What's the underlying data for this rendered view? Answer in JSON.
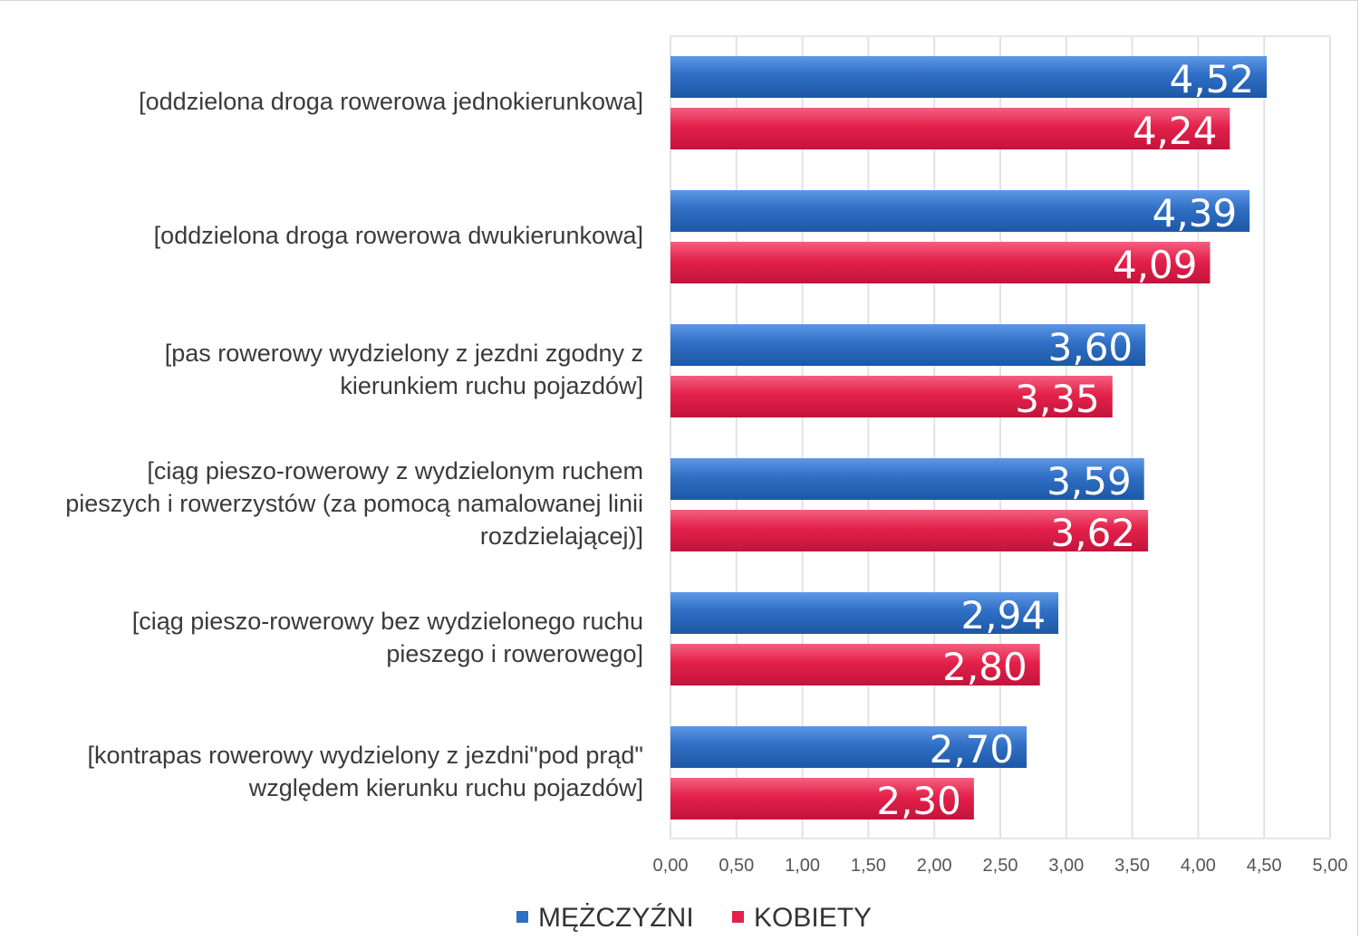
{
  "chart_data": {
    "type": "bar",
    "orientation": "horizontal",
    "categories": [
      [
        "[oddzielona droga rowerowa jednokierunkowa]"
      ],
      [
        "[oddzielona droga rowerowa dwukierunkowa]"
      ],
      [
        "[pas rowerowy wydzielony z jezdni zgodny z",
        "kierunkiem ruchu pojazdów]"
      ],
      [
        "[ciąg pieszo-rowerowy z wydzielonym ruchem",
        "pieszych i rowerzystów (za pomocą namalowanej linii",
        "rozdzielającej)]"
      ],
      [
        "[ciąg pieszo-rowerowy bez wydzielonego ruchu",
        "pieszego i rowerowego]"
      ],
      [
        "[kontrapas rowerowy wydzielony z jezdni\"pod prąd\"",
        "względem kierunku ruchu pojazdów]"
      ]
    ],
    "series": [
      {
        "name": "MĘŻCZYŹNI",
        "color": "#2f6fc4",
        "values": [
          4.52,
          4.39,
          3.6,
          3.59,
          2.94,
          2.7
        ],
        "labels": [
          "4,52",
          "4,39",
          "3,60",
          "3,59",
          "2,94",
          "2,70"
        ]
      },
      {
        "name": "KOBIETY",
        "color": "#e4214a",
        "values": [
          4.24,
          4.09,
          3.35,
          3.62,
          2.8,
          2.3
        ],
        "labels": [
          "4,24",
          "4,09",
          "3,35",
          "3,62",
          "2,80",
          "2,30"
        ]
      }
    ],
    "xlim": [
      0,
      5
    ],
    "xticks": [
      0,
      0.5,
      1,
      1.5,
      2,
      2.5,
      3,
      3.5,
      4,
      4.5,
      5
    ],
    "xtick_labels": [
      "0,00",
      "0,50",
      "1,00",
      "1,50",
      "2,00",
      "2,50",
      "3,00",
      "3,50",
      "4,00",
      "4,50",
      "5,00"
    ],
    "grid": true,
    "legend_position": "bottom-center",
    "title": "",
    "xlabel": "",
    "ylabel": ""
  }
}
